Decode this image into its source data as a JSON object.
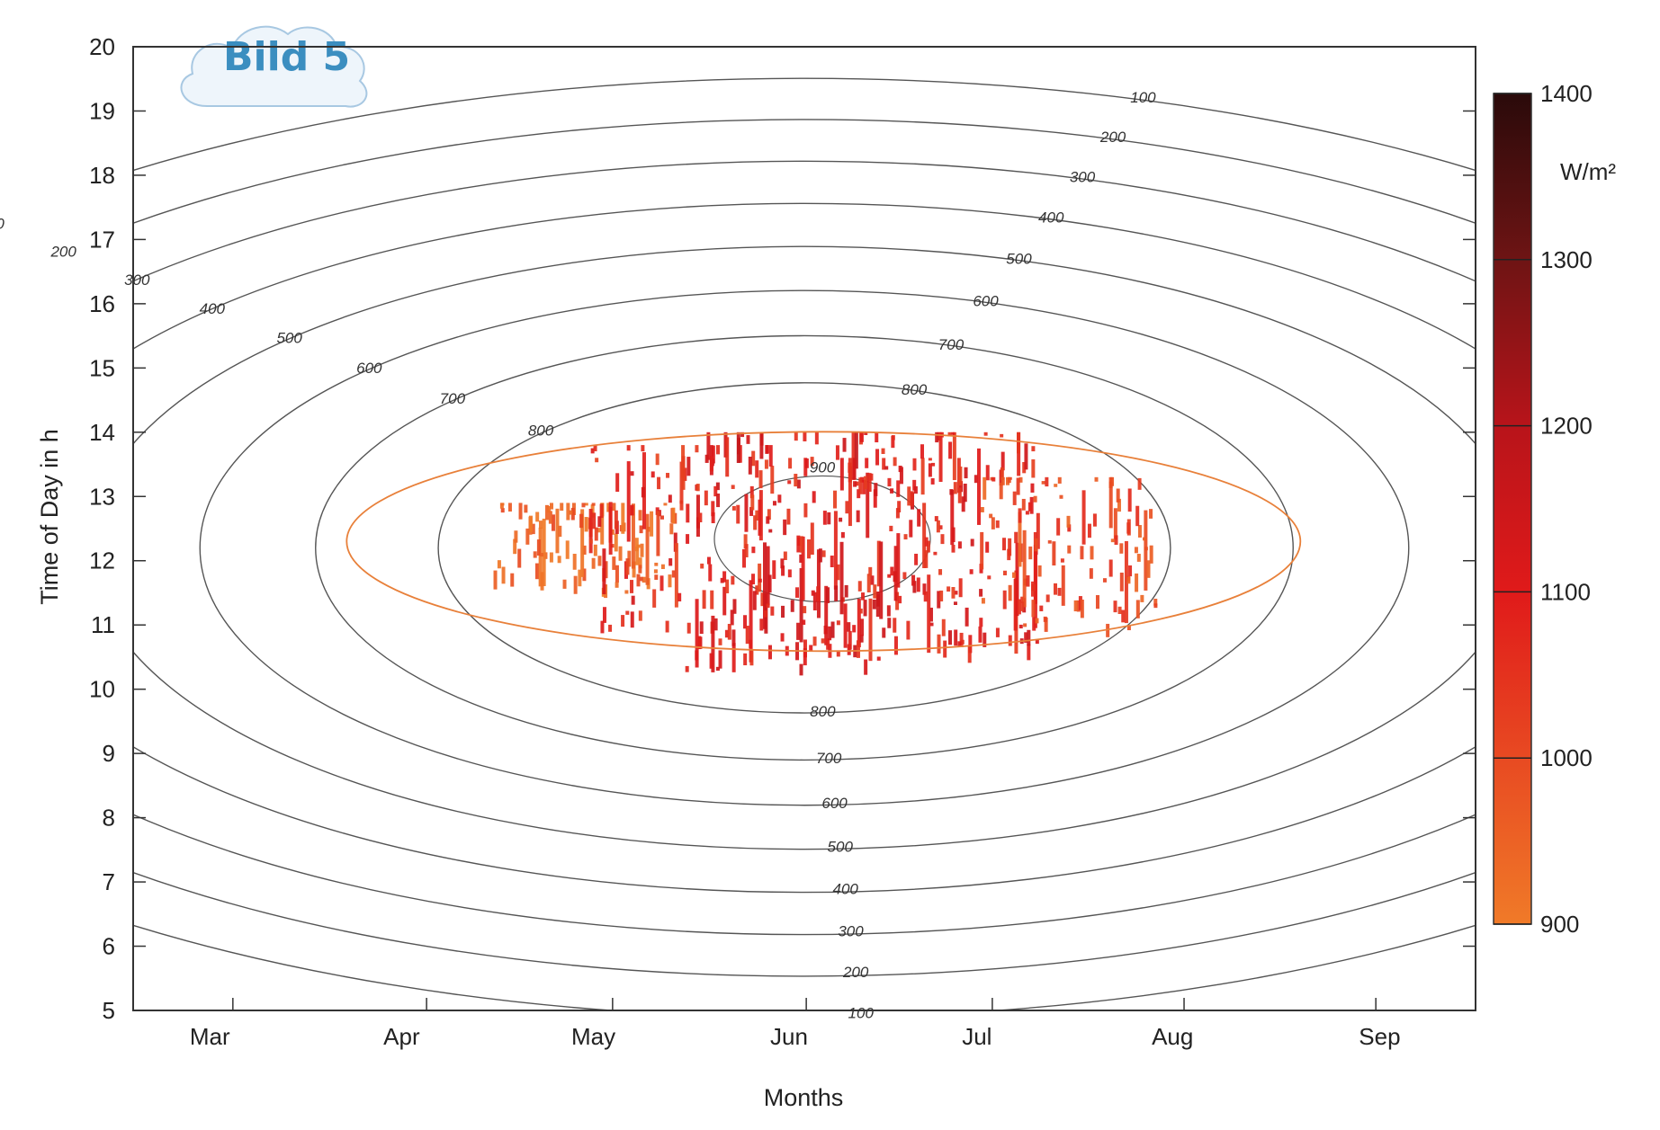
{
  "badge": {
    "text": "Bild 5"
  },
  "chart_data": {
    "type": "heatmap",
    "title": "",
    "xlabel": "Months",
    "ylabel": "Time of Day in h",
    "x_tick_labels": [
      "Mar",
      "Apr",
      "May",
      "Jun",
      "Jul",
      "Aug",
      "Sep"
    ],
    "ylim": [
      5,
      20
    ],
    "y_ticks": [
      5,
      6,
      7,
      8,
      9,
      10,
      11,
      12,
      13,
      14,
      15,
      16,
      17,
      18,
      19,
      20
    ],
    "colorbar": {
      "unit": "W/m²",
      "range": [
        900,
        1400
      ],
      "ticks": [
        900,
        1000,
        1100,
        1200,
        1300,
        1400
      ],
      "colors": {
        "low": "#f07a28",
        "mid": "#e02020",
        "high": "#2a0a0a"
      }
    },
    "contour_levels": [
      100,
      200,
      300,
      400,
      500,
      600,
      700,
      800,
      900
    ],
    "contour_color": "#555555",
    "measured_900_contour_color": "#e8803a",
    "series": [
      {
        "month_center": 4.9,
        "time_range": [
          11.4,
          12.9
        ],
        "typical_value": 930
      },
      {
        "month_center": 5.4,
        "time_range": [
          10.6,
          13.8
        ],
        "typical_value": 1060
      },
      {
        "month_center": 5.9,
        "time_range": [
          10.2,
          14.0
        ],
        "typical_value": 1090
      },
      {
        "month_center": 6.4,
        "time_range": [
          10.4,
          13.6
        ],
        "typical_value": 1080
      },
      {
        "month_center": 6.8,
        "time_range": [
          10.4,
          14.0
        ],
        "typical_value": 1070
      },
      {
        "month_center": 7.4,
        "time_range": [
          10.8,
          13.3
        ],
        "typical_value": 990
      }
    ]
  }
}
